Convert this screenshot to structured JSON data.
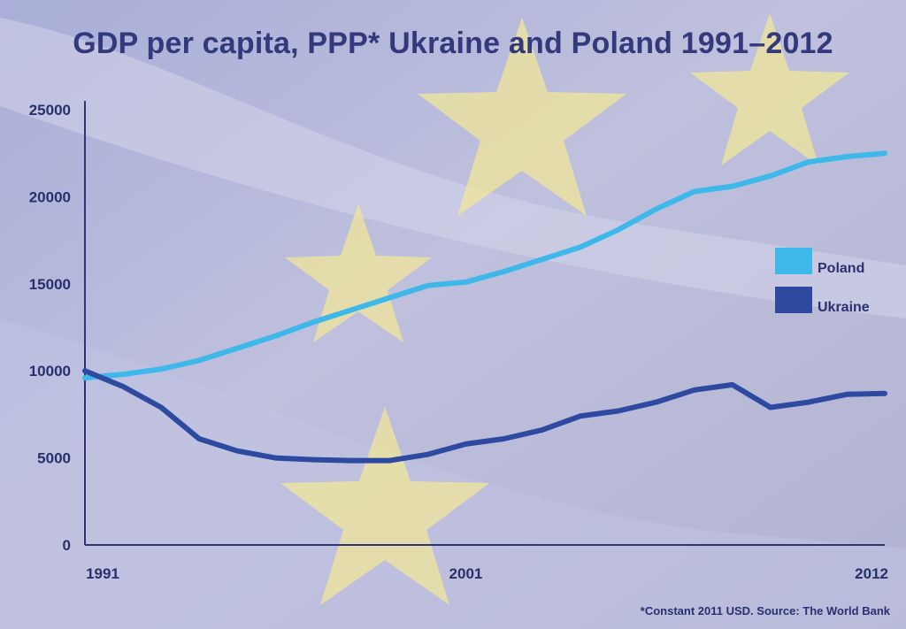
{
  "chart_data": {
    "type": "line",
    "title": "GDP per capita, PPP* Ukraine and Poland 1991–2012",
    "footnote": "*Constant 2011 USD.  Source: The World Bank",
    "xlabel": "",
    "ylabel": "",
    "x": [
      1991,
      1992,
      1993,
      1994,
      1995,
      1996,
      1997,
      1998,
      1999,
      2000,
      2001,
      2002,
      2003,
      2004,
      2005,
      2006,
      2007,
      2008,
      2009,
      2010,
      2011,
      2012
    ],
    "xlim": [
      1991,
      2012
    ],
    "x_tick_labels": [
      "1991",
      "2001",
      "2012"
    ],
    "x_tick_values": [
      1991,
      2001,
      2012
    ],
    "ylim": [
      0,
      25000
    ],
    "y_tick_labels": [
      "0",
      "5000",
      "10000",
      "15000",
      "20000",
      "25000"
    ],
    "y_tick_values": [
      0,
      5000,
      10000,
      15000,
      20000,
      25000
    ],
    "grid": false,
    "legend_position": "right",
    "series": [
      {
        "name": "Poland",
        "color": "#3db8e8",
        "values": [
          9600,
          9800,
          10100,
          10600,
          11300,
          12000,
          12800,
          13500,
          14200,
          14900,
          15100,
          15700,
          16400,
          17100,
          18100,
          19300,
          20300,
          20600,
          21200,
          22000,
          22300,
          22500
        ]
      },
      {
        "name": "Ukraine",
        "color": "#2d4aa0",
        "values": [
          10000,
          9100,
          7900,
          6100,
          5400,
          5000,
          4900,
          4850,
          4850,
          5200,
          5800,
          6100,
          6600,
          7400,
          7700,
          8200,
          8900,
          9200,
          7900,
          8200,
          8650,
          8700
        ]
      }
    ]
  }
}
